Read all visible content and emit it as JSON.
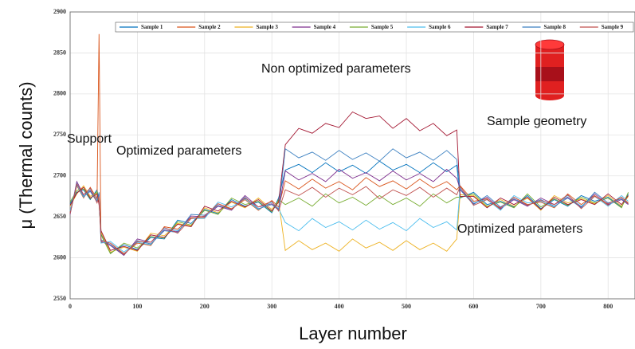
{
  "chart_data": {
    "type": "line",
    "x_label": "Layer number",
    "y_label": "μ (Thermal counts)",
    "annotations": [
      "Support",
      "Optimized parameters",
      "Non optimized parameters",
      "Sample geometry",
      "Optimized parameters"
    ],
    "x": [
      0,
      10,
      20,
      30,
      40,
      43,
      46,
      60,
      80,
      100,
      120,
      140,
      160,
      180,
      200,
      220,
      240,
      260,
      280,
      300,
      310,
      320,
      340,
      360,
      380,
      400,
      420,
      440,
      460,
      480,
      500,
      520,
      540,
      560,
      575,
      580,
      600,
      620,
      640,
      660,
      680,
      700,
      720,
      740,
      760,
      780,
      800,
      820,
      830
    ],
    "xlim": [
      0,
      840
    ],
    "xticks": [
      0,
      100,
      200,
      300,
      400,
      500,
      600,
      700,
      800
    ],
    "ylim": [
      2550,
      2900
    ],
    "yticks": [
      2550,
      2600,
      2650,
      2700,
      2750,
      2800,
      2850,
      2900
    ],
    "grid": true,
    "series": [
      {
        "name": "Sample 1",
        "color": "#0072bd",
        "values": [
          2666,
          2680,
          2683,
          2671,
          2683,
          2669,
          2629,
          2606,
          2616,
          2610,
          2625,
          2623,
          2646,
          2642,
          2659,
          2654,
          2671,
          2663,
          2668,
          2655,
          2673,
          2707,
          2714,
          2704,
          2716,
          2705,
          2713,
          2703,
          2718,
          2707,
          2714,
          2704,
          2716,
          2705,
          2713,
          2673,
          2680,
          2665,
          2669,
          2662,
          2676,
          2660,
          2671,
          2663,
          2676,
          2669,
          2674,
          2662,
          2678
        ]
      },
      {
        "name": "Sample 2",
        "color": "#d95319",
        "values": [
          2655,
          2688,
          2673,
          2686,
          2672,
          2873,
          2619,
          2618,
          2605,
          2618,
          2615,
          2638,
          2635,
          2649,
          2649,
          2666,
          2660,
          2671,
          2658,
          2670,
          2662,
          2694,
          2684,
          2696,
          2685,
          2693,
          2683,
          2698,
          2687,
          2694,
          2684,
          2696,
          2685,
          2693,
          2683,
          2688,
          2669,
          2672,
          2659,
          2674,
          2665,
          2668,
          2661,
          2678,
          2665,
          2676,
          2664,
          2674,
          2667
        ]
      },
      {
        "name": "Sample 3",
        "color": "#edb120",
        "values": [
          2663,
          2678,
          2688,
          2675,
          2679,
          2666,
          2631,
          2607,
          2613,
          2608,
          2630,
          2627,
          2642,
          2639,
          2661,
          2655,
          2668,
          2661,
          2673,
          2659,
          2669,
          2609,
          2621,
          2610,
          2618,
          2608,
          2623,
          2612,
          2619,
          2609,
          2621,
          2610,
          2618,
          2608,
          2623,
          2677,
          2676,
          2662,
          2671,
          2663,
          2673,
          2658,
          2676,
          2667,
          2672,
          2666,
          2676,
          2663,
          2675
        ]
      },
      {
        "name": "Sample 4",
        "color": "#7e2f8e",
        "values": [
          2653,
          2693,
          2677,
          2682,
          2669,
          2678,
          2620,
          2615,
          2603,
          2623,
          2619,
          2634,
          2632,
          2651,
          2650,
          2663,
          2658,
          2676,
          2662,
          2666,
          2659,
          2706,
          2695,
          2703,
          2693,
          2708,
          2697,
          2704,
          2694,
          2706,
          2695,
          2703,
          2693,
          2708,
          2697,
          2684,
          2666,
          2674,
          2660,
          2671,
          2663,
          2673,
          2665,
          2674,
          2662,
          2678,
          2665,
          2671,
          2665
        ]
      },
      {
        "name": "Sample 5",
        "color": "#77ac30",
        "values": [
          2668,
          2682,
          2684,
          2672,
          2681,
          2667,
          2628,
          2605,
          2618,
          2612,
          2626,
          2624,
          2644,
          2640,
          2658,
          2653,
          2673,
          2665,
          2669,
          2656,
          2671,
          2665,
          2673,
          2663,
          2678,
          2667,
          2674,
          2664,
          2676,
          2665,
          2673,
          2663,
          2678,
          2667,
          2674,
          2674,
          2678,
          2663,
          2668,
          2661,
          2678,
          2662,
          2672,
          2664,
          2674,
          2667,
          2673,
          2661,
          2680
        ]
      },
      {
        "name": "Sample 6",
        "color": "#4dbeee",
        "values": [
          2657,
          2689,
          2674,
          2684,
          2670,
          2675,
          2618,
          2620,
          2607,
          2619,
          2616,
          2636,
          2633,
          2648,
          2648,
          2668,
          2662,
          2672,
          2659,
          2668,
          2660,
          2643,
          2633,
          2648,
          2637,
          2644,
          2634,
          2646,
          2635,
          2643,
          2633,
          2648,
          2637,
          2644,
          2634,
          2686,
          2667,
          2671,
          2658,
          2676,
          2667,
          2669,
          2662,
          2676,
          2663,
          2675,
          2663,
          2676,
          2669
        ]
      },
      {
        "name": "Sample 7",
        "color": "#a2142f",
        "values": [
          2664,
          2679,
          2686,
          2673,
          2678,
          2665,
          2633,
          2609,
          2614,
          2609,
          2628,
          2625,
          2641,
          2638,
          2663,
          2657,
          2669,
          2662,
          2671,
          2657,
          2668,
          2738,
          2758,
          2752,
          2764,
          2759,
          2778,
          2770,
          2773,
          2758,
          2770,
          2755,
          2764,
          2749,
          2756,
          2675,
          2675,
          2661,
          2673,
          2665,
          2674,
          2659,
          2674,
          2665,
          2671,
          2665,
          2678,
          2665,
          2676
        ]
      },
      {
        "name": "Sample 8",
        "color": "#3a7fc0",
        "values": [
          2654,
          2691,
          2675,
          2681,
          2668,
          2680,
          2622,
          2616,
          2604,
          2621,
          2617,
          2633,
          2631,
          2653,
          2652,
          2664,
          2659,
          2674,
          2660,
          2665,
          2658,
          2733,
          2722,
          2729,
          2719,
          2731,
          2720,
          2728,
          2718,
          2733,
          2722,
          2729,
          2719,
          2731,
          2720,
          2683,
          2665,
          2676,
          2662,
          2672,
          2664,
          2671,
          2663,
          2673,
          2661,
          2680,
          2667,
          2672,
          2666
        ]
      },
      {
        "name": "Sample 9",
        "color": "#c0504d",
        "values": [
          2654,
          2690,
          2677,
          2685,
          2667,
          2675,
          2621,
          2618,
          2604,
          2620,
          2619,
          2637,
          2630,
          2648,
          2651,
          2666,
          2659,
          2673,
          2662,
          2669,
          2657,
          2683,
          2676,
          2686,
          2674,
          2685,
          2677,
          2687,
          2672,
          2683,
          2676,
          2686,
          2674,
          2685,
          2677,
          2687,
          2664,
          2671,
          2661,
          2674,
          2664,
          2670,
          2665,
          2677,
          2660,
          2675,
          2666,
          2674,
          2666
        ]
      }
    ]
  }
}
